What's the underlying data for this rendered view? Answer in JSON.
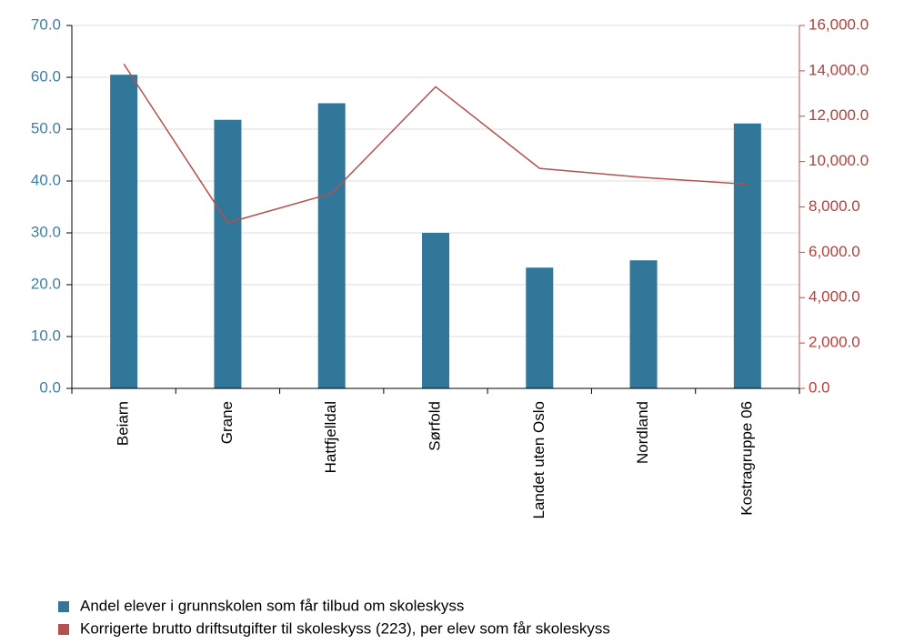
{
  "chart_data": {
    "type": "bar",
    "categories": [
      "Beiarn",
      "Grane",
      "Hattfjelldal",
      "Sørfold",
      "Landet uten Oslo",
      "Nordland",
      "Kostragruppe 06"
    ],
    "series": [
      {
        "name": "Andel elever i grunnskolen som får tilbud om skoleskyss",
        "type": "bar",
        "color": "#31779a",
        "values": [
          60.5,
          51.8,
          55.0,
          30.0,
          23.3,
          24.7,
          51.1
        ]
      },
      {
        "name": "Korrigerte brutto driftsutgifter til skoleskyss (223), per elev som får skoleskyss",
        "type": "line",
        "axis": "y2",
        "color": "#b4504d",
        "values": [
          14300,
          7300,
          8600,
          13300,
          9700,
          9300,
          9000
        ]
      }
    ],
    "ylim": [
      0,
      70
    ],
    "yticks": [
      {
        "value": 0,
        "label": "0.0"
      },
      {
        "value": 10,
        "label": "10.0"
      },
      {
        "value": 20,
        "label": "20.0"
      },
      {
        "value": 30,
        "label": "30.0"
      },
      {
        "value": 40,
        "label": "40.0"
      },
      {
        "value": 50,
        "label": "50.0"
      },
      {
        "value": 60,
        "label": "60.0"
      },
      {
        "value": 70,
        "label": "70.0"
      }
    ],
    "y2lim": [
      0,
      16000
    ],
    "y2ticks": [
      {
        "value": 0,
        "label": "0.0"
      },
      {
        "value": 2000,
        "label": "2,000.0"
      },
      {
        "value": 4000,
        "label": "4,000.0"
      },
      {
        "value": 6000,
        "label": "6,000.0"
      },
      {
        "value": 8000,
        "label": "8,000.0"
      },
      {
        "value": 10000,
        "label": "10,000.0"
      },
      {
        "value": 12000,
        "label": "12,000.0"
      },
      {
        "value": 14000,
        "label": "14,000.0"
      },
      {
        "value": 16000,
        "label": "16,000.0"
      }
    ],
    "grid": true,
    "legend": "bottom"
  }
}
